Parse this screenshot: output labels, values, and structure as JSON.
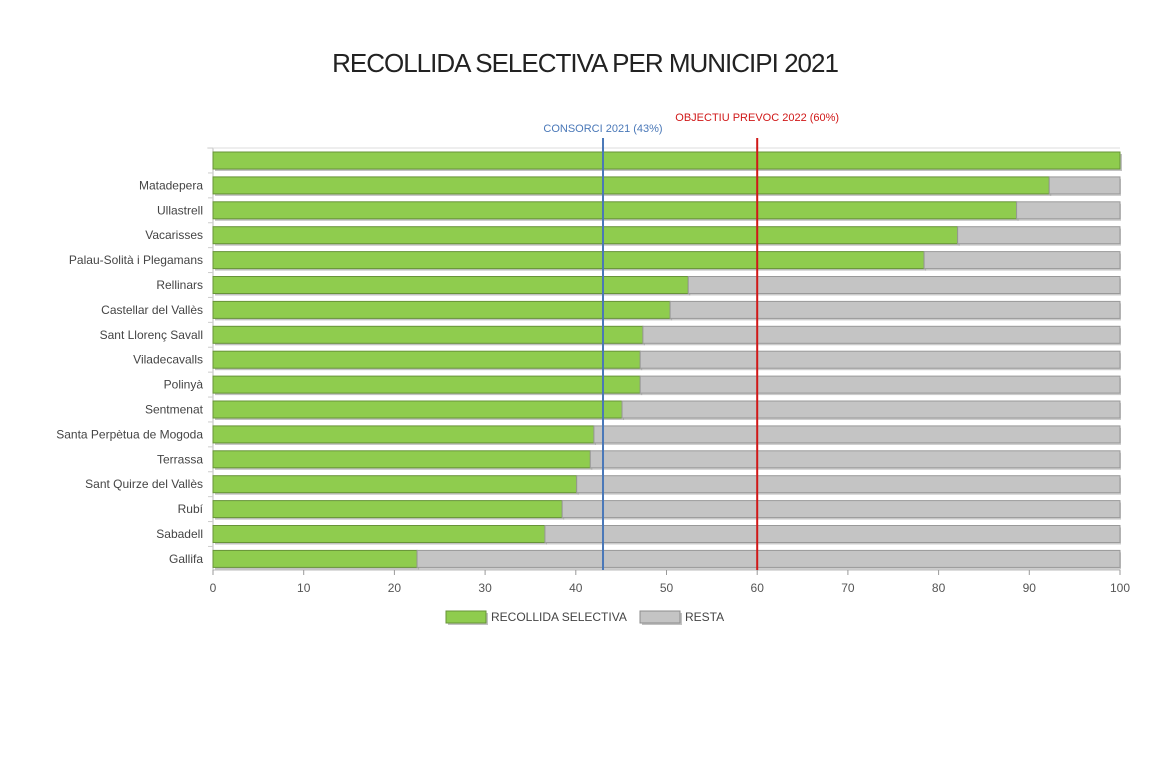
{
  "chart_data": {
    "type": "bar",
    "orientation": "horizontal",
    "stacked": true,
    "title": "RECOLLIDA SELECTIVA PER MUNICIPI 2021",
    "categories": [
      "",
      "Matadepera",
      "Ullastrell",
      "Vacarisses",
      "Palau-Solità i Plegamans",
      "Rellinars",
      "Castellar del Vallès",
      "Sant Llorenç Savall",
      "Viladecavalls",
      "Polinyà",
      "Sentmenat",
      "Santa Perpètua de Mogoda",
      "Terrassa",
      "Sant Quirze del Vallès",
      "Rubí",
      "Sabadell",
      "Gallifa"
    ],
    "series": [
      {
        "name": "RECOLLIDA SELECTIVA",
        "color": "#8fcc4e",
        "values": [
          100,
          92.2,
          88.6,
          82.1,
          78.4,
          52.4,
          50.4,
          47.4,
          47.1,
          47.1,
          45.1,
          42.0,
          41.6,
          40.1,
          38.5,
          36.6,
          22.5
        ]
      },
      {
        "name": "RESTA",
        "color": "#c4c4c4",
        "values": [
          0,
          7.8,
          11.4,
          17.9,
          21.6,
          47.6,
          49.6,
          52.6,
          52.9,
          52.9,
          54.9,
          58.0,
          58.4,
          59.9,
          61.5,
          63.4,
          77.5
        ]
      }
    ],
    "xlim": [
      0,
      100
    ],
    "xticks": [
      0,
      10,
      20,
      30,
      40,
      50,
      60,
      70,
      80,
      90,
      100
    ],
    "reference_lines": [
      {
        "value": 43,
        "label": "CONSORCI 2021 (43%)",
        "color": "#4a78b8"
      },
      {
        "value": 60,
        "label": "OBJECTIU PREVOC 2022 (60%)",
        "color": "#d01818"
      }
    ],
    "legend": "bottom",
    "grid": false
  }
}
